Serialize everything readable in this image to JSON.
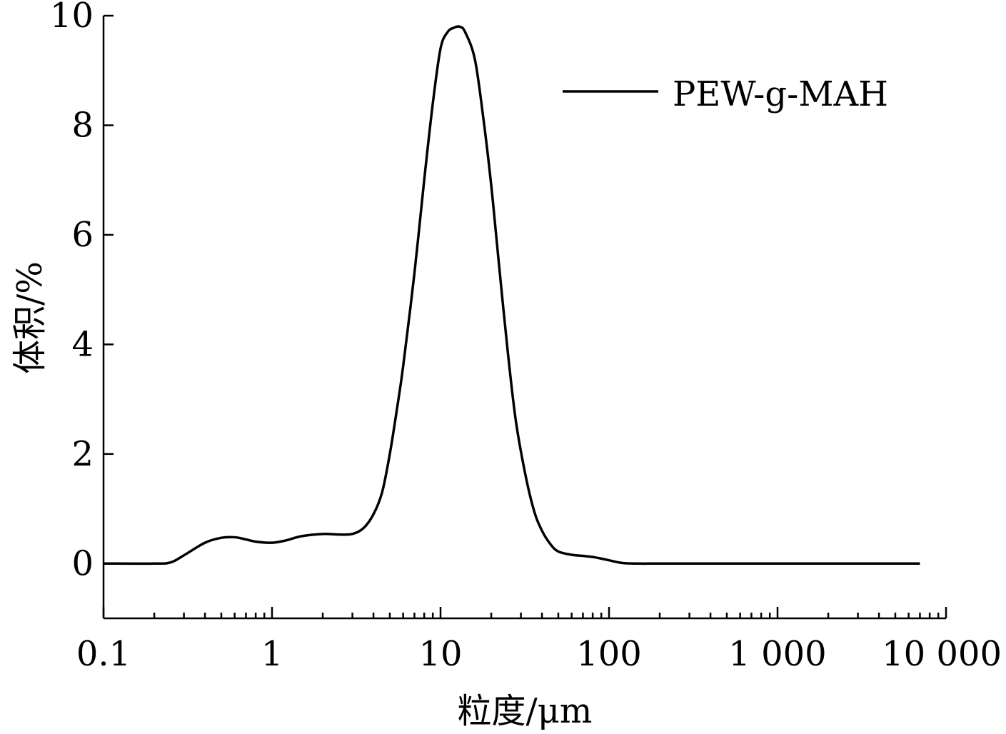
{
  "chart_data": {
    "type": "line",
    "xscale": "log",
    "xlim": [
      0.1,
      10000
    ],
    "ylim": [
      -1,
      10
    ],
    "x_tick_labels": [
      "0.1",
      "1",
      "10",
      "100",
      "1 000",
      "10 000"
    ],
    "x_tick_values": [
      0.1,
      1,
      10,
      100,
      1000,
      10000
    ],
    "y_tick_labels": [
      "0",
      "2",
      "4",
      "6",
      "8",
      "10"
    ],
    "y_tick_values": [
      0,
      2,
      4,
      6,
      8,
      10
    ],
    "xlabel": "粒度/μm",
    "ylabel": "体积/%",
    "legend_position": "top-right",
    "grid": false,
    "series": [
      {
        "name": "PEW-g-MAH",
        "color": "#000000",
        "x": [
          0.1,
          0.2,
          0.25,
          0.3,
          0.4,
          0.5,
          0.6,
          0.7,
          0.8,
          1.0,
          1.2,
          1.5,
          2.0,
          2.5,
          3.0,
          3.5,
          4.0,
          4.5,
          5.0,
          5.5,
          6.0,
          7.0,
          8.0,
          9.0,
          10.0,
          11.0,
          12.0,
          13.0,
          14.0,
          16.0,
          18.0,
          20.0,
          22.0,
          25.0,
          28.0,
          32.0,
          36.0,
          40.0,
          45.0,
          50.0,
          60.0,
          70.0,
          80.0,
          90.0,
          100.0,
          120.0,
          150.0,
          200.0,
          500.0,
          1000.0,
          7000.0
        ],
        "y": [
          0,
          0,
          0.02,
          0.15,
          0.38,
          0.47,
          0.48,
          0.44,
          0.4,
          0.38,
          0.42,
          0.5,
          0.54,
          0.53,
          0.54,
          0.65,
          0.9,
          1.3,
          2.0,
          2.8,
          3.6,
          5.3,
          7.0,
          8.4,
          9.4,
          9.7,
          9.78,
          9.8,
          9.7,
          9.2,
          8.1,
          6.9,
          5.6,
          3.9,
          2.6,
          1.6,
          0.95,
          0.6,
          0.35,
          0.22,
          0.16,
          0.14,
          0.12,
          0.09,
          0.06,
          0.01,
          0,
          0,
          0,
          0,
          0
        ]
      }
    ]
  }
}
